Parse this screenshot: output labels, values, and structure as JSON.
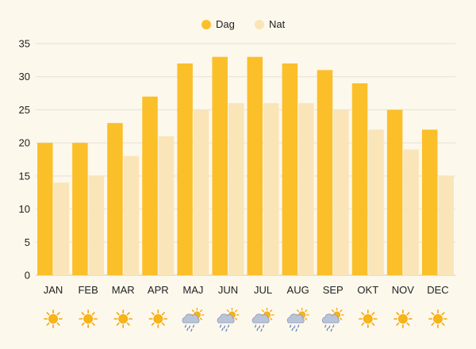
{
  "chart_data": {
    "type": "bar",
    "categories": [
      "JAN",
      "FEB",
      "MAR",
      "APR",
      "MAJ",
      "JUN",
      "JUL",
      "AUG",
      "SEP",
      "OKT",
      "NOV",
      "DEC"
    ],
    "series": [
      {
        "name": "Dag",
        "values": [
          20,
          20,
          23,
          27,
          32,
          33,
          33,
          32,
          31,
          29,
          25,
          22
        ],
        "color": "#fbbf2a"
      },
      {
        "name": "Nat",
        "values": [
          14,
          15,
          18,
          21,
          25,
          26,
          26,
          26,
          25,
          22,
          19,
          15
        ],
        "color": "#f9e5b8"
      }
    ],
    "ylim": [
      0,
      35
    ],
    "yticks": [
      0,
      5,
      10,
      15,
      20,
      25,
      30,
      35
    ],
    "grid": true,
    "legend_position": "top-center",
    "weather_icons": [
      "sun-icon",
      "sun-icon",
      "sun-icon",
      "sun-icon",
      "rain-sun-icon",
      "rain-sun-icon",
      "rain-sun-icon",
      "rain-sun-icon",
      "rain-sun-icon",
      "sun-icon",
      "sun-icon",
      "sun-icon"
    ]
  }
}
